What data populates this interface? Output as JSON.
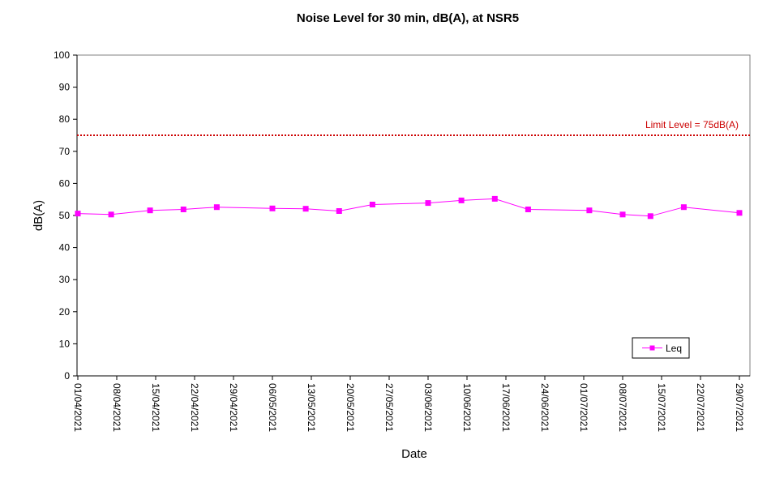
{
  "colors": {
    "series": "#ff00ff",
    "series_marker": "#ff00ff",
    "limit": "#cc0000",
    "axis": "#000000",
    "background": "#ffffff"
  },
  "chart_data": {
    "type": "line",
    "title": "Noise Level for 30 min, dB(A), at NSR5",
    "xlabel": "Date",
    "ylabel": "dB(A)",
    "ylim": [
      0,
      100
    ],
    "yticks": [
      0,
      10,
      20,
      30,
      40,
      50,
      60,
      70,
      80,
      90,
      100
    ],
    "xlim": [
      "2021-04-01",
      "2021-07-29"
    ],
    "xticks": [
      "01/04/2021",
      "08/04/2021",
      "15/04/2021",
      "22/04/2021",
      "29/04/2021",
      "06/05/2021",
      "13/05/2021",
      "20/05/2021",
      "27/05/2021",
      "03/06/2021",
      "10/06/2021",
      "17/06/2021",
      "24/06/2021",
      "01/07/2021",
      "08/07/2021",
      "15/07/2021",
      "22/07/2021",
      "29/07/2021"
    ],
    "grid": false,
    "legend_position": "bottom-right",
    "series": [
      {
        "name": "Leq",
        "points": [
          {
            "x": "2021-04-01",
            "y": 50.6
          },
          {
            "x": "2021-04-07",
            "y": 50.3
          },
          {
            "x": "2021-04-14",
            "y": 51.6
          },
          {
            "x": "2021-04-20",
            "y": 51.9
          },
          {
            "x": "2021-04-26",
            "y": 52.6
          },
          {
            "x": "2021-05-06",
            "y": 52.2
          },
          {
            "x": "2021-05-12",
            "y": 52.1
          },
          {
            "x": "2021-05-18",
            "y": 51.4
          },
          {
            "x": "2021-05-24",
            "y": 53.4
          },
          {
            "x": "2021-06-03",
            "y": 53.9
          },
          {
            "x": "2021-06-09",
            "y": 54.7
          },
          {
            "x": "2021-06-15",
            "y": 55.2
          },
          {
            "x": "2021-06-21",
            "y": 51.9
          },
          {
            "x": "2021-07-02",
            "y": 51.6
          },
          {
            "x": "2021-07-08",
            "y": 50.3
          },
          {
            "x": "2021-07-13",
            "y": 49.8
          },
          {
            "x": "2021-07-19",
            "y": 52.6
          },
          {
            "x": "2021-07-29",
            "y": 50.8
          }
        ]
      }
    ],
    "reference_lines": [
      {
        "label": "Limit Level = 75dB(A)",
        "y": 75,
        "style": "dotted"
      }
    ]
  }
}
